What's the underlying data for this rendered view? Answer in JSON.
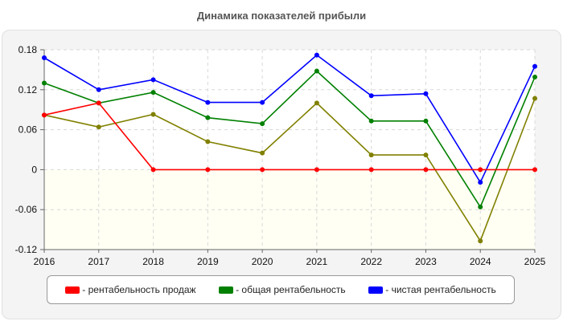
{
  "title": "Динамика показателей прибыли",
  "chart_data": {
    "type": "line",
    "title": "Динамика показателей прибыли",
    "xlabel": "",
    "ylabel": "",
    "x": [
      2016,
      2017,
      2018,
      2019,
      2020,
      2021,
      2022,
      2023,
      2024,
      2025
    ],
    "ylim": [
      -0.12,
      0.18
    ],
    "yticks": [
      "0.18",
      "0.12",
      "0.06",
      "0",
      "-0.06",
      "-0.12"
    ],
    "yticks_values": [
      0.18,
      0.12,
      0.06,
      0,
      -0.06,
      -0.12
    ],
    "grid": true,
    "legend_position": "bottom",
    "series": [
      {
        "name": "- рентабельность продаж",
        "color": "#ff0000",
        "values": [
          0.082,
          0.1,
          0,
          0,
          0,
          0,
          0,
          0,
          0,
          0
        ]
      },
      {
        "name": "- общая рентабельность",
        "color": "#008000",
        "values": [
          0.13,
          0.1,
          0.116,
          0.078,
          0.069,
          0.148,
          0.073,
          0.073,
          -0.056,
          0.139
        ]
      },
      {
        "name": "- чистая рентабельность",
        "color": "#0000ff",
        "values": [
          0.168,
          0.12,
          0.135,
          0.101,
          0.101,
          0.172,
          0.111,
          0.114,
          -0.019,
          0.155
        ]
      },
      {
        "unlabeled": true,
        "color": "#808000",
        "values": [
          0.082,
          0.064,
          0.083,
          0.042,
          0.025,
          0.1,
          0.022,
          0.022,
          -0.107,
          0.107
        ]
      }
    ]
  }
}
